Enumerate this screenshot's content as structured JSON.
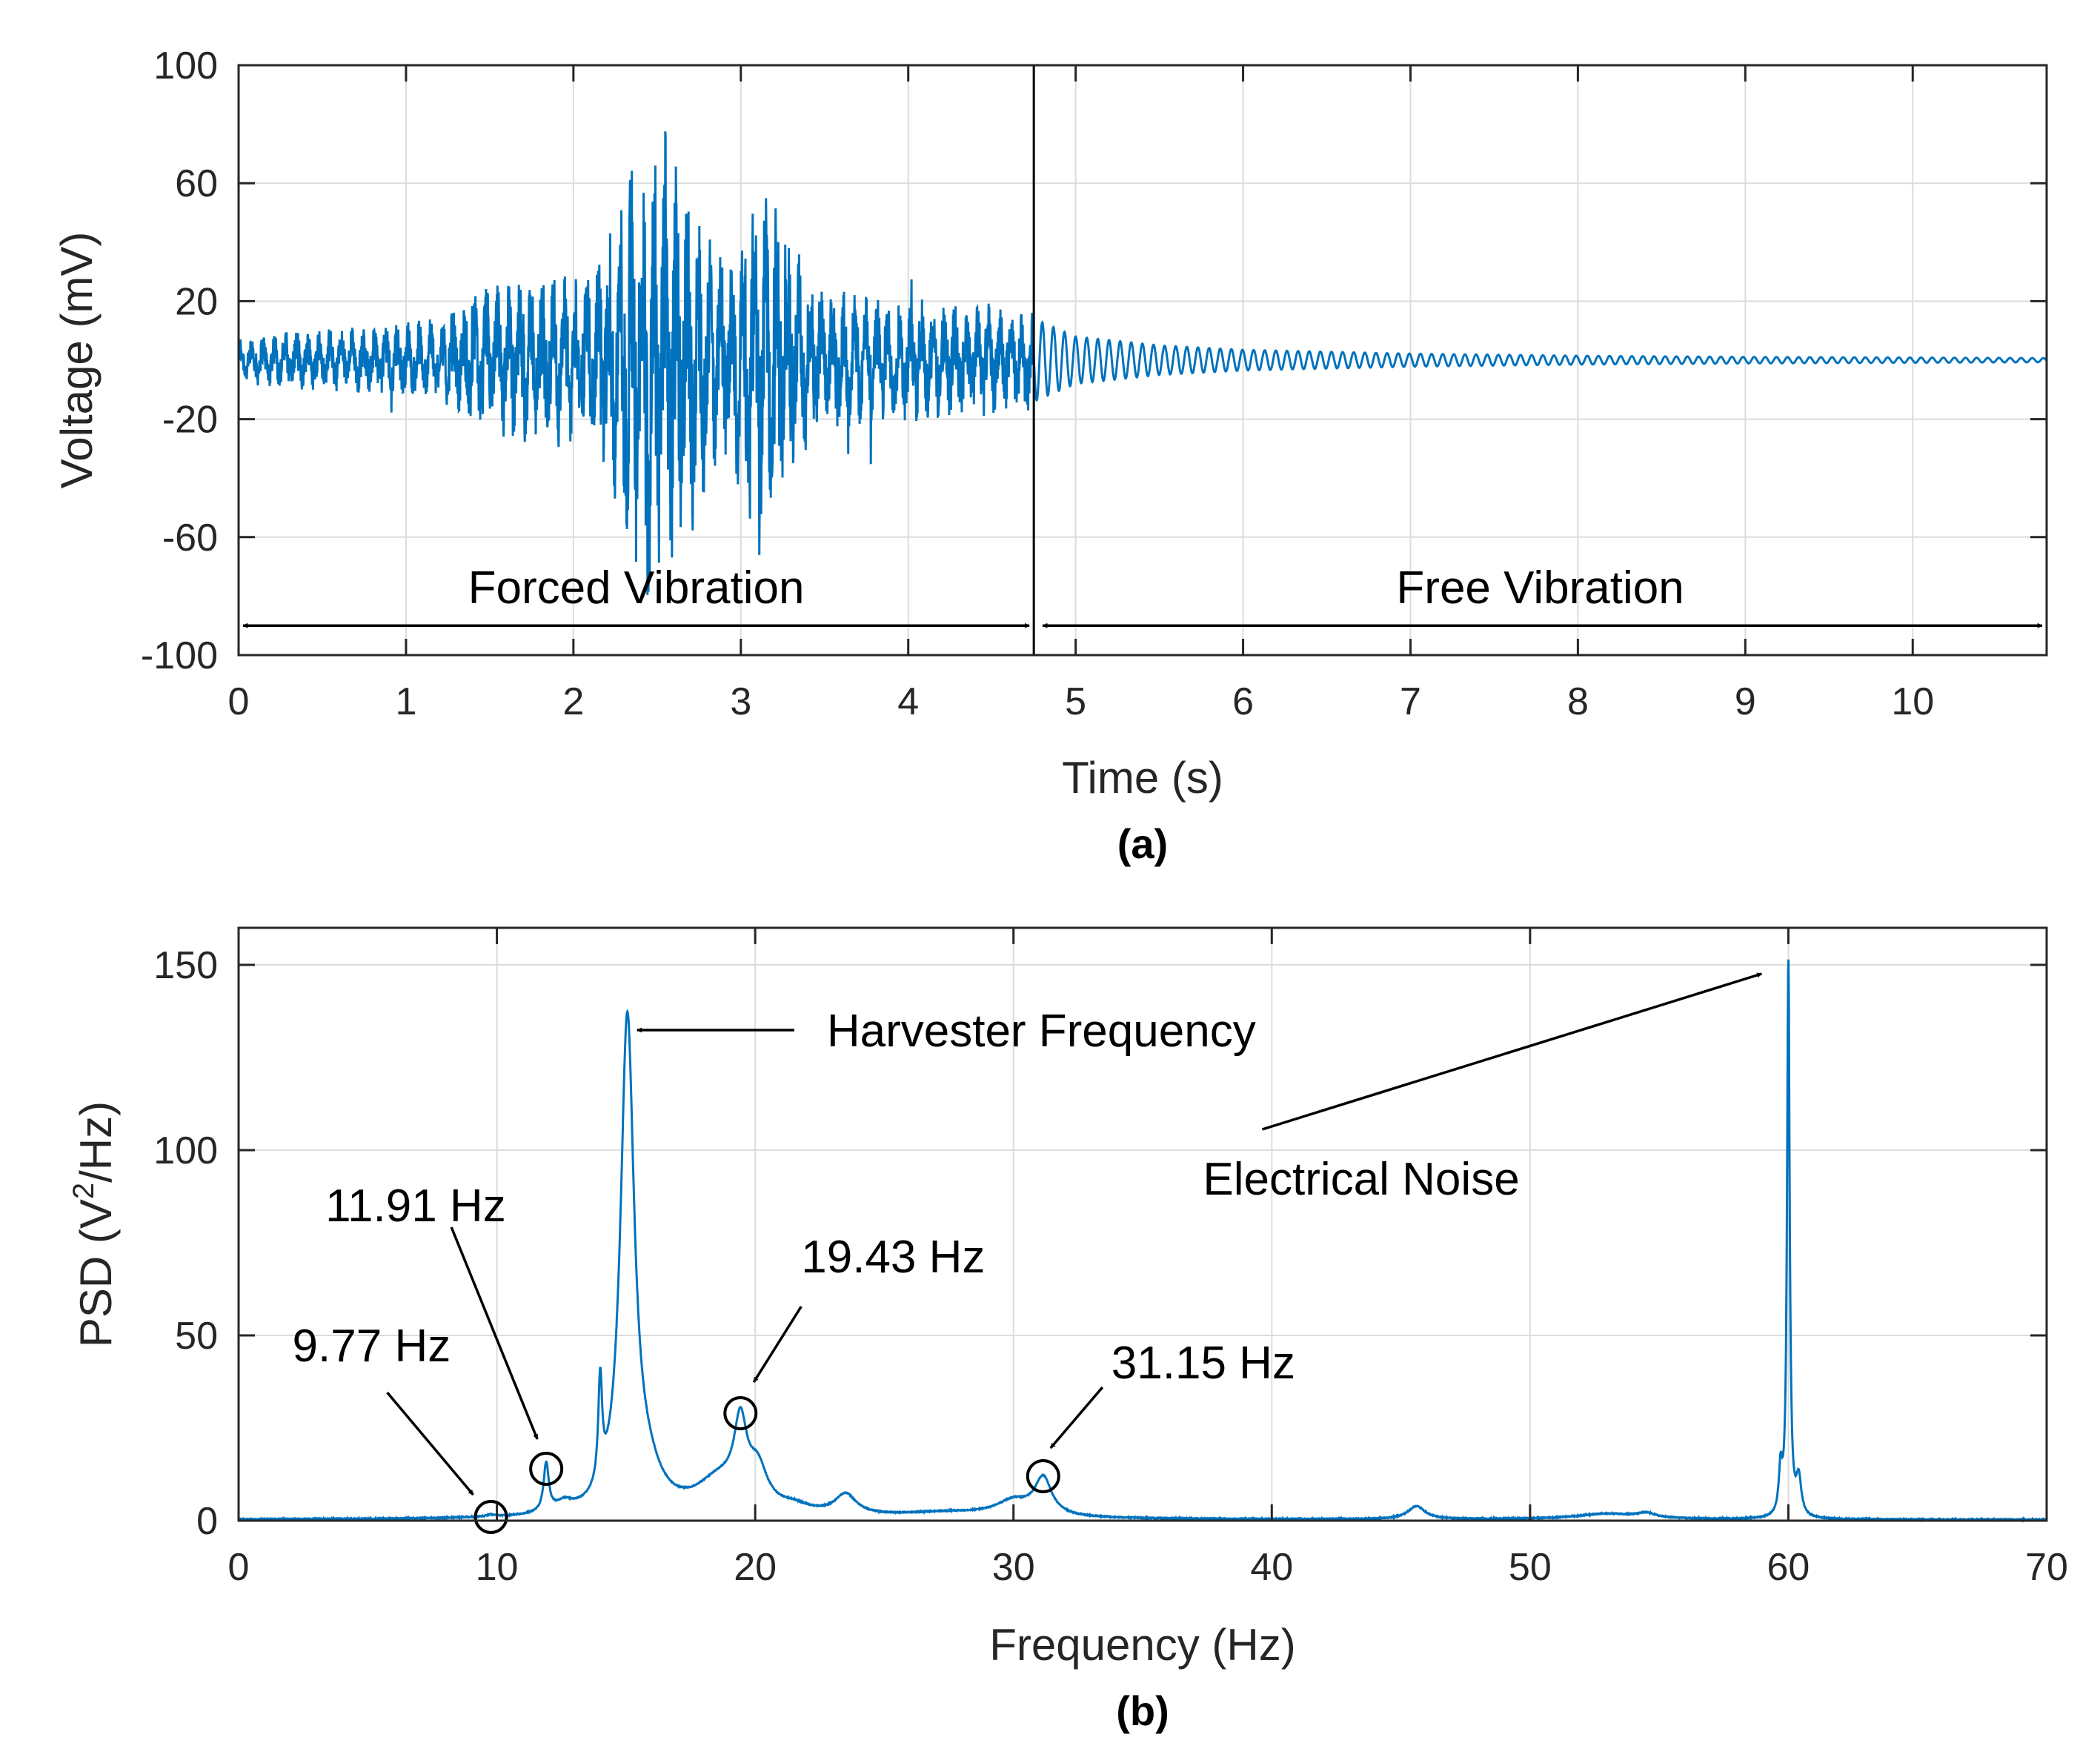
{
  "chart_data": [
    {
      "type": "line",
      "panel": "(a)",
      "xlabel": "Time (s)",
      "ylabel": "Voltage (mV)",
      "xlim": [
        0,
        10.8
      ],
      "ylim": [
        -100,
        100
      ],
      "xticks": [
        0,
        1,
        2,
        3,
        4,
        5,
        6,
        7,
        8,
        9,
        10
      ],
      "yticks": [
        -100,
        -60,
        -20,
        20,
        60,
        100
      ],
      "grid": true,
      "line_color": "#0072BD",
      "divider_x": 4.75,
      "series": [
        {
          "name": "Voltage",
          "envelope": [
            [
              0.0,
              7
            ],
            [
              0.4,
              9
            ],
            [
              0.8,
              10
            ],
            [
              1.2,
              12
            ],
            [
              1.5,
              22
            ],
            [
              1.8,
              24
            ],
            [
              2.1,
              26
            ],
            [
              2.3,
              52
            ],
            [
              2.5,
              75
            ],
            [
              2.7,
              50
            ],
            [
              2.9,
              28
            ],
            [
              3.1,
              58
            ],
            [
              3.3,
              35
            ],
            [
              3.5,
              20
            ],
            [
              4.0,
              18
            ],
            [
              4.5,
              16
            ],
            [
              4.75,
              14
            ],
            [
              5.0,
              8
            ],
            [
              5.5,
              5
            ],
            [
              6.0,
              3.5
            ],
            [
              7.0,
              2.2
            ],
            [
              8.0,
              1.5
            ],
            [
              9.0,
              1.1
            ],
            [
              10.0,
              0.9
            ],
            [
              10.8,
              0.7
            ]
          ]
        }
      ],
      "annotations": [
        {
          "text": "Forced Vibration",
          "x_from": 0,
          "x_to": 4.75,
          "y": -90
        },
        {
          "text": "Free Vibration",
          "x_from": 4.75,
          "x_to": 10.8,
          "y": -90
        }
      ]
    },
    {
      "type": "line",
      "panel": "(b)",
      "xlabel": "Frequency (Hz)",
      "ylabel_main": "PSD (V",
      "ylabel_sup": "2",
      "ylabel_tail": "/Hz)",
      "xlim": [
        0,
        70
      ],
      "ylim": [
        0,
        160
      ],
      "xticks": [
        0,
        10,
        20,
        30,
        40,
        50,
        60,
        70
      ],
      "yticks": [
        0,
        50,
        100,
        150
      ],
      "grid": true,
      "line_color": "#0072BD",
      "series": [
        {
          "name": "PSD",
          "peaks": [
            {
              "f": 9.77,
              "a": 0.5,
              "w": 0.2
            },
            {
              "f": 11.91,
              "a": 13,
              "w": 0.12
            },
            {
              "f": 12.6,
              "a": 2.5,
              "w": 0.4
            },
            {
              "f": 14.0,
              "a": 28,
              "w": 0.09
            },
            {
              "f": 15.05,
              "a": 132,
              "w": 0.32
            },
            {
              "f": 15.8,
              "a": 8,
              "w": 0.7
            },
            {
              "f": 18.6,
              "a": 9,
              "w": 1.1
            },
            {
              "f": 19.43,
              "a": 20,
              "w": 0.3
            },
            {
              "f": 20.1,
              "a": 10,
              "w": 0.45
            },
            {
              "f": 21.5,
              "a": 2,
              "w": 0.8
            },
            {
              "f": 23.5,
              "a": 5.5,
              "w": 0.5
            },
            {
              "f": 27.5,
              "a": 1.5,
              "w": 2.5
            },
            {
              "f": 30.0,
              "a": 4,
              "w": 0.8
            },
            {
              "f": 31.15,
              "a": 10,
              "w": 0.4
            },
            {
              "f": 45.6,
              "a": 3.5,
              "w": 0.4
            },
            {
              "f": 53.0,
              "a": 1.5,
              "w": 1.5
            },
            {
              "f": 54.5,
              "a": 1.2,
              "w": 0.4
            },
            {
              "f": 59.7,
              "a": 12,
              "w": 0.08
            },
            {
              "f": 60.0,
              "a": 150,
              "w": 0.06
            },
            {
              "f": 60.4,
              "a": 10,
              "w": 0.12
            }
          ]
        }
      ],
      "markers": [
        {
          "x": 9.77,
          "y": 1
        },
        {
          "x": 11.91,
          "y": 14
        },
        {
          "x": 19.43,
          "y": 29
        },
        {
          "x": 31.15,
          "y": 12
        }
      ],
      "annotations": [
        {
          "text": "Harvester Frequency",
          "x": 15.2,
          "y": 132
        },
        {
          "text": "Electrical Noise",
          "x": 60.0,
          "y": 150
        },
        {
          "text": "9.77 Hz",
          "x": 9.77,
          "y": 1
        },
        {
          "text": "11.91 Hz",
          "x": 11.91,
          "y": 14
        },
        {
          "text": "19.43 Hz",
          "x": 19.43,
          "y": 29
        },
        {
          "text": "31.15 Hz",
          "x": 31.15,
          "y": 12
        }
      ]
    }
  ]
}
